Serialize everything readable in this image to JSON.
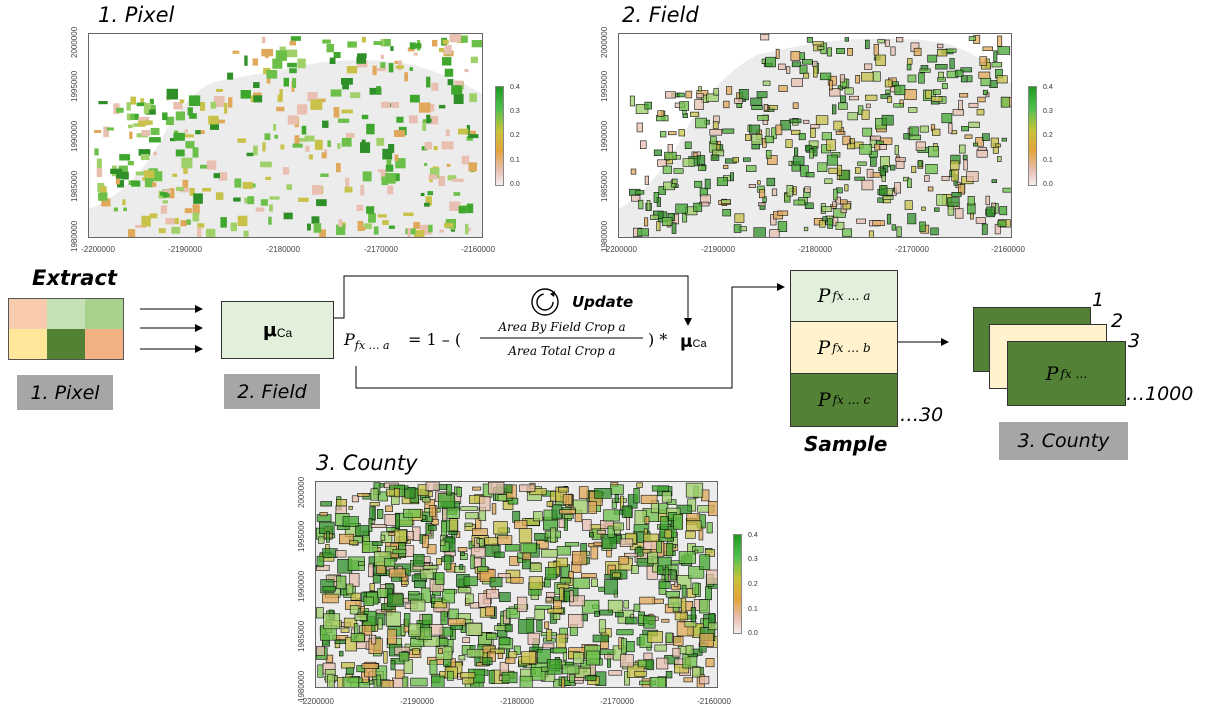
{
  "maps": [
    {
      "title": "1. Pixel",
      "y_ticks": [
        "2000000",
        "1995000",
        "1990000",
        "1985000",
        "1980000"
      ],
      "x_ticks": [
        "-2200000",
        "-2190000",
        "-2180000",
        "-2170000",
        "-2160000"
      ],
      "legend": [
        "0.4",
        "0.3",
        "0.2",
        "0.1",
        "0.0"
      ]
    },
    {
      "title": "2. Field",
      "y_ticks": [
        "2000000",
        "1995000",
        "1990000",
        "1985000",
        "1980000"
      ],
      "x_ticks": [
        "-2200000",
        "-2190000",
        "-2180000",
        "-2170000",
        "-2160000"
      ],
      "legend": [
        "0.4",
        "0.3",
        "0.2",
        "0.1",
        "0.0"
      ]
    },
    {
      "title": "3. County",
      "y_ticks": [
        "2000000",
        "1995000",
        "1990000",
        "1985000",
        "1980000"
      ],
      "x_ticks": [
        "-2200000",
        "-2190000",
        "-2180000",
        "-2170000",
        "-2160000"
      ],
      "legend": [
        "0.4",
        "0.3",
        "0.2",
        "0.1",
        "0.0"
      ]
    }
  ],
  "diagram": {
    "extract": "Extract",
    "pixel_label": "1. Pixel",
    "field_label": "2. Field",
    "county_label": "3. County",
    "mu": "μ",
    "mu_sub": "Ca",
    "update": "Update",
    "formula_p": "P",
    "formula_p_sub": "fx … a",
    "formula_eq": "= 1 – (",
    "frac_num": "Area By Field Crop a",
    "frac_den": "Area Total Crop a",
    "formula_tail": ") *",
    "sample_cells": [
      {
        "p": "P",
        "sub": "fx … a",
        "color": "#e2efda"
      },
      {
        "p": "P",
        "sub": "fx … b",
        "color": "#fff2cc"
      },
      {
        "p": "P",
        "sub": "fx … c",
        "color": "#538135"
      }
    ],
    "sample_count": "…30",
    "sample_label": "Sample",
    "stack_nums": [
      "1",
      "2",
      "3"
    ],
    "stack_p": "P",
    "stack_sub": "fx …",
    "stack_count": "…1000",
    "grid_colors": [
      "#f8cbad",
      "#c5e0b4",
      "#a9d18e",
      "#ffe699",
      "#548235",
      "#f4b183"
    ]
  }
}
